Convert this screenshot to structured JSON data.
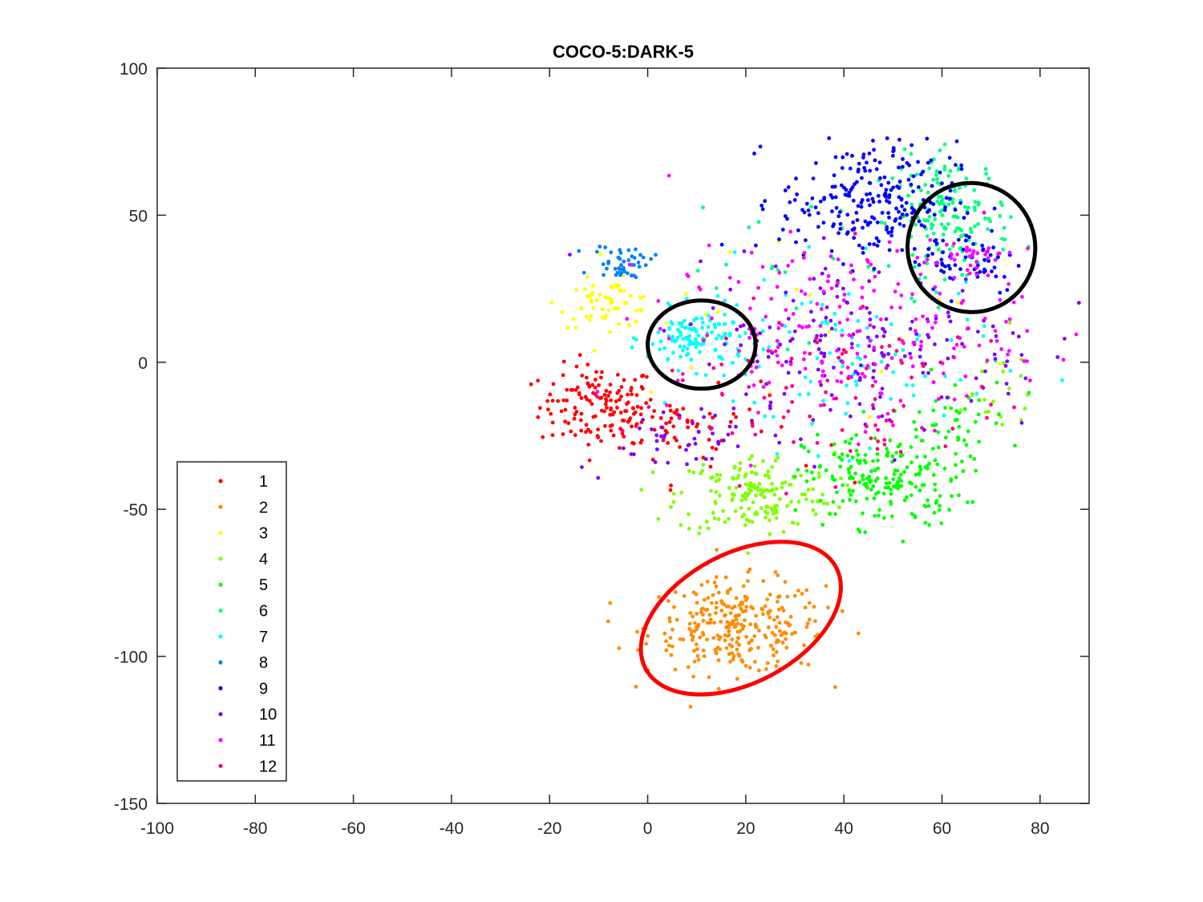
{
  "chart_data": {
    "type": "scatter",
    "title": "COCO-5:DARK-5",
    "xlabel": "",
    "ylabel": "",
    "xlim": [
      -100,
      90
    ],
    "ylim": [
      -150,
      100
    ],
    "xticks": [
      -100,
      -80,
      -60,
      -40,
      -20,
      0,
      20,
      40,
      60,
      80
    ],
    "yticks": [
      -150,
      -100,
      -50,
      0,
      50,
      100
    ],
    "grid": false,
    "legend_position": "bottom-left",
    "series": [
      {
        "name": "1",
        "color": "#ff0000",
        "clusters": [
          {
            "cx": -10,
            "cy": -15,
            "sx": 6,
            "sy": 7,
            "n": 140
          },
          {
            "cx": 5,
            "cy": -20,
            "sx": 7,
            "sy": 6,
            "n": 40
          },
          {
            "cx": 15,
            "cy": -25,
            "sx": 10,
            "sy": 8,
            "n": 25
          }
        ]
      },
      {
        "name": "2",
        "color": "#ff8c00",
        "clusters": [
          {
            "cx": 18,
            "cy": -90,
            "sx": 9,
            "sy": 8,
            "n": 280
          }
        ]
      },
      {
        "name": "3",
        "color": "#ffff00",
        "clusters": [
          {
            "cx": -8,
            "cy": 20,
            "sx": 5,
            "sy": 4,
            "n": 60
          },
          {
            "cx": 30,
            "cy": 15,
            "sx": 25,
            "sy": 15,
            "n": 20
          }
        ]
      },
      {
        "name": "4",
        "color": "#80ff00",
        "clusters": [
          {
            "cx": 22,
            "cy": -45,
            "sx": 8,
            "sy": 7,
            "n": 170
          },
          {
            "cx": 70,
            "cy": -10,
            "sx": 6,
            "sy": 10,
            "n": 20
          }
        ]
      },
      {
        "name": "5",
        "color": "#00ff00",
        "clusters": [
          {
            "cx": 48,
            "cy": -40,
            "sx": 8,
            "sy": 8,
            "n": 200
          },
          {
            "cx": 62,
            "cy": -20,
            "sx": 6,
            "sy": 8,
            "n": 40
          }
        ]
      },
      {
        "name": "6",
        "color": "#00ff80",
        "clusters": [
          {
            "cx": 62,
            "cy": 50,
            "sx": 6,
            "sy": 10,
            "n": 160
          },
          {
            "cx": 30,
            "cy": 40,
            "sx": 15,
            "sy": 15,
            "n": 25
          }
        ]
      },
      {
        "name": "7",
        "color": "#00ffff",
        "clusters": [
          {
            "cx": 10,
            "cy": 8,
            "sx": 5,
            "sy": 5,
            "n": 120
          },
          {
            "cx": 40,
            "cy": 0,
            "sx": 15,
            "sy": 15,
            "n": 90
          }
        ]
      },
      {
        "name": "8",
        "color": "#0080ff",
        "clusters": [
          {
            "cx": -5,
            "cy": 34,
            "sx": 3,
            "sy": 3,
            "n": 45
          }
        ]
      },
      {
        "name": "9",
        "color": "#0000ff",
        "clusters": [
          {
            "cx": 45,
            "cy": 55,
            "sx": 9,
            "sy": 10,
            "n": 240
          },
          {
            "cx": 65,
            "cy": 35,
            "sx": 6,
            "sy": 6,
            "n": 60
          }
        ]
      },
      {
        "name": "10",
        "color": "#8000ff",
        "clusters": [
          {
            "cx": 45,
            "cy": 5,
            "sx": 18,
            "sy": 15,
            "n": 180
          },
          {
            "cx": 5,
            "cy": -25,
            "sx": 10,
            "sy": 6,
            "n": 40
          }
        ]
      },
      {
        "name": "11",
        "color": "#ff00ff",
        "clusters": [
          {
            "cx": 40,
            "cy": 10,
            "sx": 18,
            "sy": 15,
            "n": 200
          },
          {
            "cx": 65,
            "cy": 35,
            "sx": 5,
            "sy": 5,
            "n": 40
          }
        ]
      },
      {
        "name": "12",
        "color": "#ff0080",
        "clusters": [
          {
            "cx": 35,
            "cy": -10,
            "sx": 20,
            "sy": 15,
            "n": 90
          }
        ]
      }
    ],
    "annotations": [
      {
        "shape": "ellipse",
        "color": "#ff0000",
        "cx": 19,
        "cy": -87,
        "rx": 22,
        "ry": 22,
        "rotation_deg": -28
      },
      {
        "shape": "ellipse",
        "color": "#000000",
        "cx": 11,
        "cy": 6,
        "rx": 11,
        "ry": 15,
        "rotation_deg": 0
      },
      {
        "shape": "ellipse",
        "color": "#000000",
        "cx": 66,
        "cy": 39,
        "rx": 13,
        "ry": 22,
        "rotation_deg": -20
      }
    ]
  }
}
